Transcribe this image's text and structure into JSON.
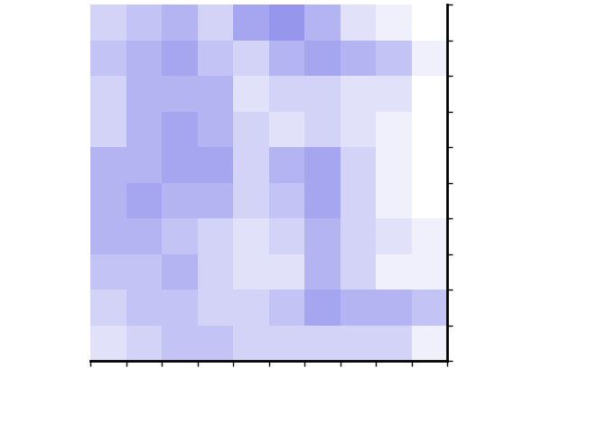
{
  "chart_data": {
    "type": "heatmap",
    "color": "#6a6ae6",
    "tick_labels": false,
    "xlim": [
      0,
      10
    ],
    "ylim": [
      0,
      10
    ],
    "xticks": [
      0,
      1,
      2,
      3,
      4,
      5,
      6,
      7,
      8,
      9,
      10
    ],
    "yticks": [
      0,
      1,
      2,
      3,
      4,
      5,
      6,
      7,
      8,
      9,
      10
    ],
    "zlim": [
      0,
      1
    ],
    "cells": [
      [
        0.3,
        0.4,
        0.5,
        0.3,
        0.6,
        0.7,
        0.5,
        0.2,
        0.1,
        0.0
      ],
      [
        0.4,
        0.5,
        0.6,
        0.4,
        0.3,
        0.5,
        0.6,
        0.5,
        0.4,
        0.1
      ],
      [
        0.3,
        0.5,
        0.5,
        0.5,
        0.2,
        0.3,
        0.3,
        0.2,
        0.2,
        0.0
      ],
      [
        0.3,
        0.5,
        0.6,
        0.5,
        0.3,
        0.2,
        0.3,
        0.2,
        0.1,
        0.0
      ],
      [
        0.5,
        0.5,
        0.6,
        0.6,
        0.3,
        0.5,
        0.6,
        0.3,
        0.1,
        0.0
      ],
      [
        0.5,
        0.6,
        0.5,
        0.5,
        0.3,
        0.4,
        0.6,
        0.3,
        0.1,
        0.0
      ],
      [
        0.5,
        0.5,
        0.4,
        0.3,
        0.2,
        0.3,
        0.5,
        0.3,
        0.2,
        0.1
      ],
      [
        0.4,
        0.4,
        0.5,
        0.3,
        0.2,
        0.2,
        0.5,
        0.3,
        0.1,
        0.1
      ],
      [
        0.3,
        0.4,
        0.4,
        0.3,
        0.3,
        0.4,
        0.6,
        0.5,
        0.5,
        0.4
      ],
      [
        0.2,
        0.3,
        0.4,
        0.4,
        0.3,
        0.3,
        0.3,
        0.3,
        0.3,
        0.1
      ]
    ]
  }
}
